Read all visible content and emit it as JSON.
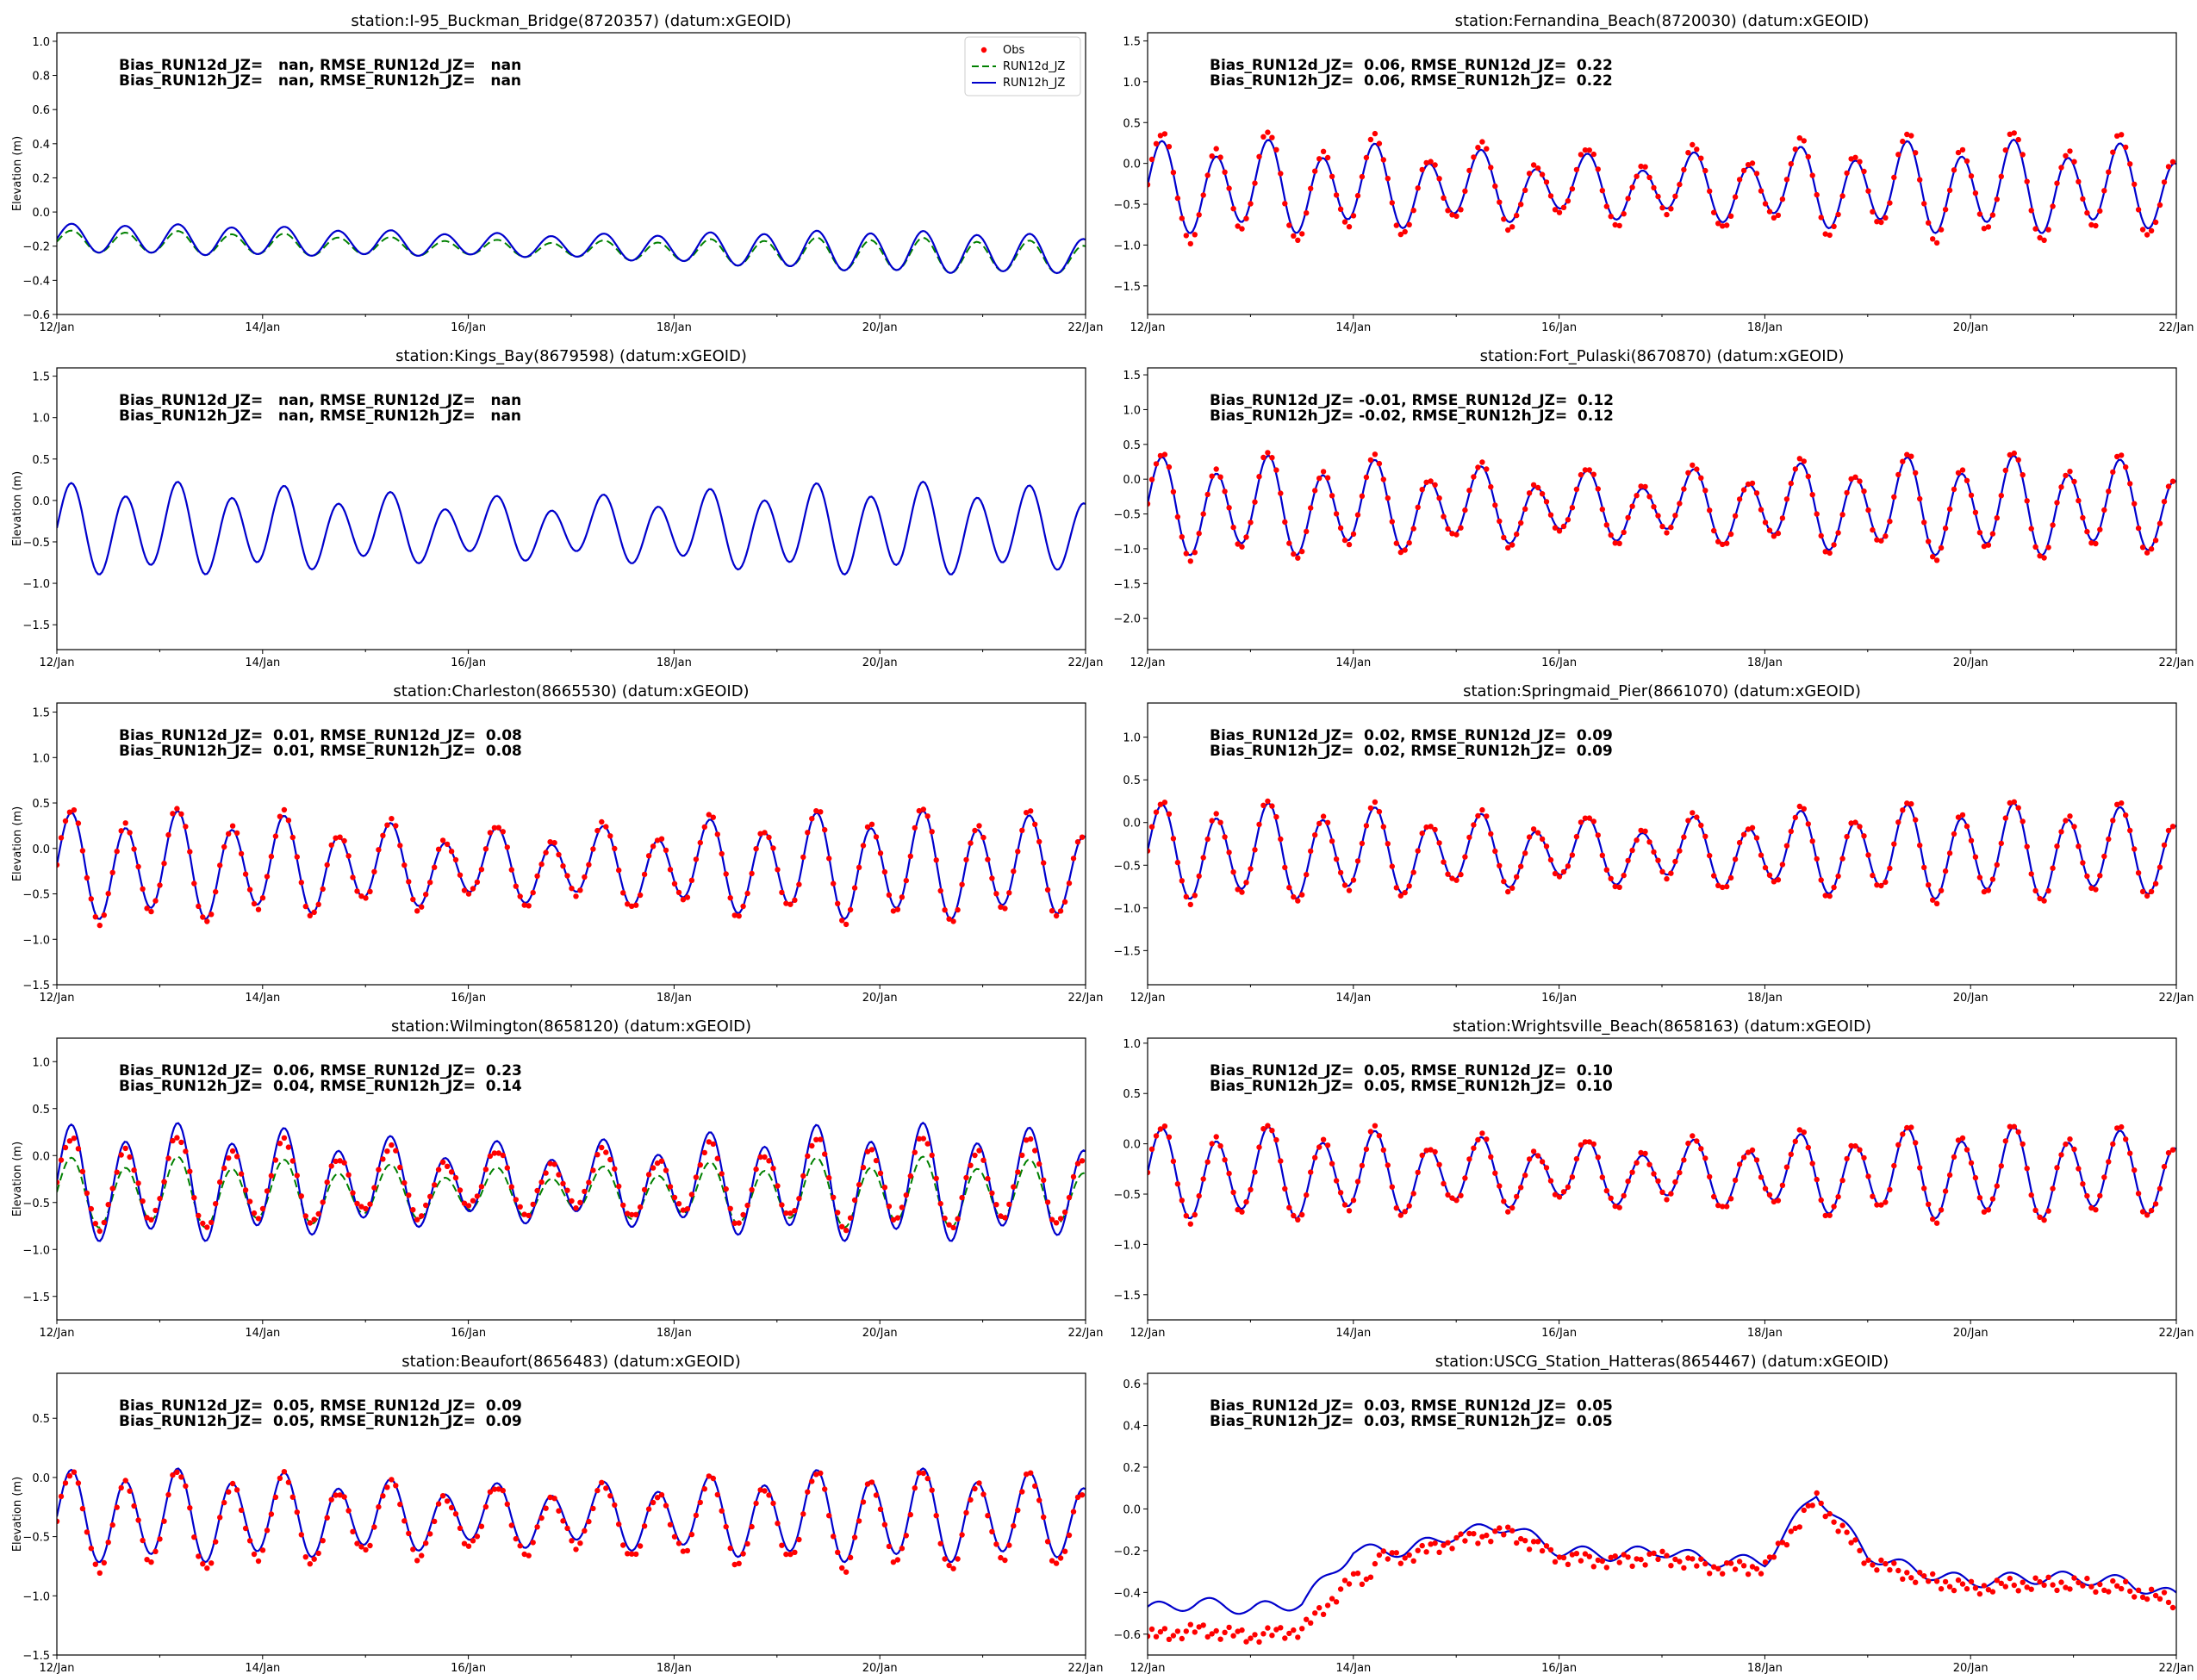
{
  "figure": {
    "x_tick_labels": [
      "12/Jan",
      "14/Jan",
      "16/Jan",
      "18/Jan",
      "20/Jan",
      "22/Jan"
    ],
    "ylabel": "Elevation (m)",
    "legend": {
      "placement": "top-right of first panel",
      "entries": [
        {
          "key": "obs",
          "label": "Obs",
          "color": "#ff0000",
          "style": "dots"
        },
        {
          "key": "run12d",
          "label": "RUN12d_JZ",
          "color": "#008000",
          "style": "dashed"
        },
        {
          "key": "run12h",
          "label": "RUN12h_JZ",
          "color": "#0000cc",
          "style": "solid"
        }
      ]
    }
  },
  "chart_data": [
    {
      "type": "line",
      "title": "station:I-95_Buckman_Bridge(8720357) (datum:xGEOID)",
      "ylabel": "Elevation (m)",
      "x_range_days": [
        12,
        22
      ],
      "ylim": [
        -0.6,
        1.05
      ],
      "yticks": [
        -0.6,
        -0.4,
        -0.2,
        0.0,
        0.2,
        0.4,
        0.6,
        0.8,
        1.0
      ],
      "ytick_labels": [
        "−0.6",
        "−0.4",
        "−0.2",
        "0.0",
        "0.2",
        "0.4",
        "0.6",
        "0.8",
        "1.0"
      ],
      "stats": [
        "Bias_RUN12d_JZ=   nan, RMSE_RUN12d_JZ=   nan",
        "Bias_RUN12h_JZ=   nan, RMSE_RUN12h_JZ=   nan"
      ],
      "mean": -0.15,
      "amp": [
        0.13,
        0.2
      ],
      "sub": 0.12,
      "trend": [
        0,
        -0.1,
        -0.1
      ],
      "has_obs": false,
      "has_green": true,
      "green_amp": 1.0,
      "green_offset": -0.02,
      "obs_offset": 0,
      "obs_spread": 0,
      "start": 0.14,
      "end": -0.35
    },
    {
      "type": "line",
      "title": "station:Fernandina_Beach(8720030) (datum:xGEOID)",
      "ylabel": "",
      "x_range_days": [
        12,
        22
      ],
      "ylim": [
        -1.85,
        1.6
      ],
      "yticks": [
        -1.5,
        -1.0,
        -0.5,
        0.0,
        0.5,
        1.0,
        1.5
      ],
      "ytick_labels": [
        "−1.5",
        "−1.0",
        "−0.5",
        "0.0",
        "0.5",
        "1.0",
        "1.5"
      ],
      "stats": [
        "Bias_RUN12d_JZ=  0.06, RMSE_RUN12d_JZ=  0.22",
        "Bias_RUN12h_JZ=  0.06, RMSE_RUN12h_JZ=  0.22"
      ],
      "mean": -0.3,
      "amp": [
        0.8,
        0.8
      ],
      "sub": 0.35,
      "trend": [
        0,
        0,
        0
      ],
      "has_obs": true,
      "has_green": false,
      "obs_offset": 0.0,
      "obs_spread": 1.18,
      "start": 0.0,
      "end": -1.05
    },
    {
      "type": "line",
      "title": "station:Kings_Bay(8679598) (datum:xGEOID)",
      "ylabel": "Elevation (m)",
      "x_range_days": [
        12,
        22
      ],
      "ylim": [
        -1.8,
        1.6
      ],
      "yticks": [
        -1.5,
        -1.0,
        -0.5,
        0.0,
        0.5,
        1.0,
        1.5
      ],
      "ytick_labels": [
        "−1.5",
        "−1.0",
        "−0.5",
        "0.0",
        "0.5",
        "1.0",
        "1.5"
      ],
      "stats": [
        "Bias_RUN12d_JZ=   nan, RMSE_RUN12d_JZ=   nan",
        "Bias_RUN12h_JZ=   nan, RMSE_RUN12h_JZ=   nan"
      ],
      "mean": -0.35,
      "amp": [
        0.8,
        0.8
      ],
      "sub": 0.3,
      "trend": [
        0,
        0,
        0
      ],
      "has_obs": false,
      "has_green": false,
      "obs_offset": 0,
      "obs_spread": 0,
      "start": 0.15,
      "end": -1.15
    },
    {
      "type": "line",
      "title": "station:Fort_Pulaski(8670870) (datum:xGEOID)",
      "ylabel": "",
      "x_range_days": [
        12,
        22
      ],
      "ylim": [
        -2.45,
        1.6
      ],
      "yticks": [
        -2.0,
        -1.5,
        -1.0,
        -0.5,
        0.0,
        0.5,
        1.0,
        1.5
      ],
      "ytick_labels": [
        "−2.0",
        "−1.5",
        "−1.0",
        "−0.5",
        "0.0",
        "0.5",
        "1.0",
        "1.5"
      ],
      "stats": [
        "Bias_RUN12d_JZ= -0.01, RMSE_RUN12d_JZ=  0.12",
        "Bias_RUN12h_JZ= -0.02, RMSE_RUN12h_JZ=  0.12"
      ],
      "mean": -0.4,
      "amp": [
        1.0,
        1.0
      ],
      "sub": 0.35,
      "trend": [
        0,
        0,
        0
      ],
      "has_obs": true,
      "has_green": false,
      "obs_offset": 0.0,
      "obs_spread": 1.08,
      "start": -0.3,
      "end": -0.9
    },
    {
      "type": "line",
      "title": "station:Charleston(8665530) (datum:xGEOID)",
      "ylabel": "Elevation (m)",
      "x_range_days": [
        12,
        22
      ],
      "ylim": [
        -1.5,
        1.6
      ],
      "yticks": [
        -1.5,
        -1.0,
        -0.5,
        0.0,
        0.5,
        1.0,
        1.5
      ],
      "ytick_labels": [
        "−1.5",
        "−1.0",
        "−0.5",
        "0.0",
        "0.5",
        "1.0",
        "1.5"
      ],
      "stats": [
        "Bias_RUN12d_JZ=  0.01, RMSE_RUN12d_JZ=  0.08",
        "Bias_RUN12h_JZ=  0.01, RMSE_RUN12h_JZ=  0.08"
      ],
      "mean": -0.2,
      "amp": [
        0.85,
        0.85
      ],
      "sub": 0.3,
      "trend": [
        0,
        0,
        0
      ],
      "has_obs": true,
      "has_green": false,
      "obs_offset": 0.0,
      "obs_spread": 1.07,
      "start": -0.05,
      "end": -0.4
    },
    {
      "type": "line",
      "title": "station:Springmaid_Pier(8661070) (datum:xGEOID)",
      "ylabel": "",
      "x_range_days": [
        12,
        22
      ],
      "ylim": [
        -1.9,
        1.4
      ],
      "yticks": [
        -1.5,
        -1.0,
        -0.5,
        0.0,
        0.5,
        1.0
      ],
      "ytick_labels": [
        "−1.5",
        "−1.0",
        "−0.5",
        "0.0",
        "0.5",
        "1.0"
      ],
      "stats": [
        "Bias_RUN12d_JZ=  0.02, RMSE_RUN12d_JZ=  0.09",
        "Bias_RUN12h_JZ=  0.02, RMSE_RUN12h_JZ=  0.09"
      ],
      "mean": -0.35,
      "amp": [
        0.8,
        0.8
      ],
      "sub": 0.3,
      "trend": [
        0,
        0,
        0
      ],
      "has_obs": true,
      "has_green": false,
      "obs_offset": 0.0,
      "obs_spread": 1.07,
      "start": -0.45,
      "end": -0.45
    },
    {
      "type": "line",
      "title": "station:Wilmington(8658120) (datum:xGEOID)",
      "ylabel": "Elevation (m)",
      "x_range_days": [
        12,
        22
      ],
      "ylim": [
        -1.75,
        1.25
      ],
      "yticks": [
        -1.5,
        -1.0,
        -0.5,
        0.0,
        0.5,
        1.0
      ],
      "ytick_labels": [
        "−1.5",
        "−1.0",
        "−0.5",
        "0.0",
        "0.5",
        "1.0"
      ],
      "stats": [
        "Bias_RUN12d_JZ=  0.06, RMSE_RUN12d_JZ=  0.23",
        "Bias_RUN12h_JZ=  0.04, RMSE_RUN12h_JZ=  0.14"
      ],
      "mean": -0.3,
      "amp": [
        0.9,
        0.9
      ],
      "sub": 0.3,
      "trend": [
        0,
        0,
        0
      ],
      "has_obs": true,
      "has_green": true,
      "green_amp": 0.6,
      "green_offset": -0.1,
      "obs_offset": 0.0,
      "obs_spread": 0.78,
      "start": 0.25,
      "end": -1.2
    },
    {
      "type": "line",
      "title": "station:Wrightsville_Beach(8658163) (datum:xGEOID)",
      "ylabel": "",
      "x_range_days": [
        12,
        22
      ],
      "ylim": [
        -1.75,
        1.05
      ],
      "yticks": [
        -1.5,
        -1.0,
        -0.5,
        0.0,
        0.5,
        1.0
      ],
      "ytick_labels": [
        "−1.5",
        "−1.0",
        "−0.5",
        "0.0",
        "0.5",
        "1.0"
      ],
      "stats": [
        "Bias_RUN12d_JZ=  0.05, RMSE_RUN12d_JZ=  0.10",
        "Bias_RUN12h_JZ=  0.05, RMSE_RUN12h_JZ=  0.10"
      ],
      "mean": -0.3,
      "amp": [
        0.65,
        0.65
      ],
      "sub": 0.3,
      "trend": [
        0,
        0,
        0
      ],
      "has_obs": true,
      "has_green": false,
      "obs_offset": 0.0,
      "obs_spread": 1.06,
      "start": -0.5,
      "end": -0.55
    },
    {
      "type": "line",
      "title": "station:Beaufort(8656483) (datum:xGEOID)",
      "ylabel": "Elevation (m)",
      "x_range_days": [
        12,
        22
      ],
      "ylim": [
        -1.5,
        0.88
      ],
      "yticks": [
        -1.5,
        -1.0,
        -0.5,
        0.0,
        0.5
      ],
      "ytick_labels": [
        "−1.5",
        "−1.0",
        "−0.5",
        "0.0",
        "0.5"
      ],
      "stats": [
        "Bias_RUN12d_JZ=  0.05, RMSE_RUN12d_JZ=  0.09",
        "Bias_RUN12h_JZ=  0.05, RMSE_RUN12h_JZ=  0.09"
      ],
      "mean": -0.33,
      "amp": [
        0.58,
        0.58
      ],
      "sub": 0.25,
      "trend": [
        0,
        0,
        0
      ],
      "has_obs": true,
      "has_green": false,
      "obs_offset": -0.04,
      "obs_spread": 1.06,
      "start": -0.5,
      "end": -0.55
    },
    {
      "type": "line",
      "title": "station:USCG_Station_Hatteras(8654467) (datum:xGEOID)",
      "ylabel": "",
      "x_range_days": [
        12,
        22
      ],
      "ylim": [
        -0.7,
        0.65
      ],
      "yticks": [
        -0.6,
        -0.4,
        -0.2,
        0.0,
        0.2,
        0.4,
        0.6
      ],
      "ytick_labels": [
        "−0.6",
        "−0.4",
        "−0.2",
        "0.0",
        "0.2",
        "0.4",
        "0.6"
      ],
      "stats": [
        "Bias_RUN12d_JZ=  0.03, RMSE_RUN12d_JZ=  0.05",
        "Bias_RUN12h_JZ=  0.03, RMSE_RUN12h_JZ=  0.05"
      ],
      "hatteras": true,
      "has_obs": true,
      "has_green": false,
      "baseline": [
        [
          12.0,
          -0.48
        ],
        [
          12.5,
          -0.45
        ],
        [
          13.0,
          -0.48
        ],
        [
          13.5,
          -0.45
        ],
        [
          14.0,
          -0.2
        ],
        [
          14.5,
          -0.2
        ],
        [
          15.0,
          -0.12
        ],
        [
          15.5,
          -0.08
        ],
        [
          16.0,
          -0.2
        ],
        [
          16.5,
          -0.22
        ],
        [
          17.0,
          -0.2
        ],
        [
          17.5,
          -0.25
        ],
        [
          18.0,
          -0.25
        ],
        [
          18.5,
          0.08
        ],
        [
          19.0,
          -0.22
        ],
        [
          19.5,
          -0.3
        ],
        [
          20.0,
          -0.35
        ],
        [
          20.5,
          -0.33
        ],
        [
          21.0,
          -0.33
        ],
        [
          21.5,
          -0.35
        ],
        [
          22.0,
          -0.42
        ]
      ]
    }
  ]
}
